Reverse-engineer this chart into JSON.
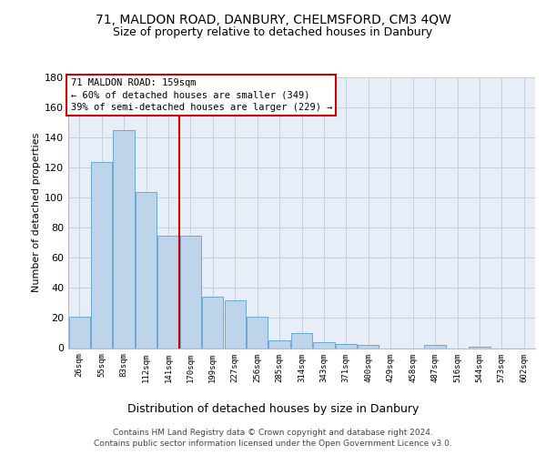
{
  "title1": "71, MALDON ROAD, DANBURY, CHELMSFORD, CM3 4QW",
  "title2": "Size of property relative to detached houses in Danbury",
  "xlabel": "Distribution of detached houses by size in Danbury",
  "ylabel": "Number of detached properties",
  "bin_labels": [
    "26sqm",
    "55sqm",
    "83sqm",
    "112sqm",
    "141sqm",
    "170sqm",
    "199sqm",
    "227sqm",
    "256sqm",
    "285sqm",
    "314sqm",
    "343sqm",
    "371sqm",
    "400sqm",
    "429sqm",
    "458sqm",
    "487sqm",
    "516sqm",
    "544sqm",
    "573sqm",
    "602sqm"
  ],
  "bar_heights": [
    21,
    124,
    145,
    104,
    75,
    75,
    34,
    32,
    21,
    5,
    10,
    4,
    3,
    2,
    0,
    0,
    2,
    0,
    1,
    0,
    0
  ],
  "bar_color": "#bdd4eb",
  "bar_edge_color": "#6aaad4",
  "vline_color": "#cc0000",
  "annotation_line1": "71 MALDON ROAD: 159sqm",
  "annotation_line2": "← 60% of detached houses are smaller (349)",
  "annotation_line3": "39% of semi-detached houses are larger (229) →",
  "annotation_box_color": "#ffffff",
  "annotation_box_edge": "#cc0000",
  "ylim": [
    0,
    180
  ],
  "yticks": [
    0,
    20,
    40,
    60,
    80,
    100,
    120,
    140,
    160,
    180
  ],
  "bg_color": "#e8eef7",
  "grid_color": "#c5cfe0",
  "footer_line1": "Contains HM Land Registry data © Crown copyright and database right 2024.",
  "footer_line2": "Contains public sector information licensed under the Open Government Licence v3.0."
}
